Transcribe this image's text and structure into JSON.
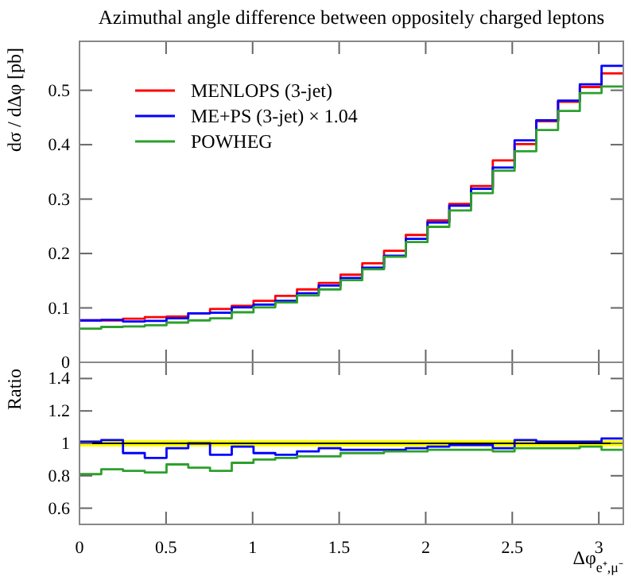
{
  "chart_data": [
    {
      "type": "histogram",
      "title": "Azimuthal angle difference between oppositely charged leptons",
      "ylabel": "dσ / dΔφ [pb]",
      "tick_labels": "y",
      "legend": "top left",
      "bins": [
        0,
        0.1257,
        0.2513,
        0.377,
        0.5027,
        0.6283,
        0.754,
        0.8796,
        1.0053,
        1.131,
        1.2566,
        1.3823,
        1.508,
        1.6336,
        1.7593,
        1.885,
        2.0106,
        2.1363,
        2.2619,
        2.3876,
        2.5133,
        2.6389,
        2.7646,
        2.8903,
        3.0159,
        3.1416
      ],
      "xlim": [
        0,
        3.1416
      ],
      "xticks": [
        {
          "value": 0,
          "label": null
        },
        {
          "value": 0.5,
          "label": null
        },
        {
          "value": 1,
          "label": null
        },
        {
          "value": 1.5,
          "label": null
        },
        {
          "value": 2,
          "label": null
        },
        {
          "value": 2.5,
          "label": null
        },
        {
          "value": 3,
          "label": null
        }
      ],
      "ylim": [
        0,
        0.59
      ],
      "yticks": [
        0,
        0.1,
        0.2,
        0.3,
        0.4,
        0.5
      ],
      "series": [
        {
          "name": "MENLOPS (3-jet)",
          "color": "#ff0000",
          "values": [
            0.077,
            0.077,
            0.08,
            0.083,
            0.084,
            0.09,
            0.098,
            0.104,
            0.113,
            0.122,
            0.134,
            0.146,
            0.161,
            0.182,
            0.205,
            0.234,
            0.261,
            0.291,
            0.324,
            0.371,
            0.401,
            0.443,
            0.479,
            0.506,
            0.531
          ]
        },
        {
          "name": "ME+PS (3-jet) × 1.04",
          "color": "#0000ff",
          "values": [
            0.077,
            0.078,
            0.075,
            0.076,
            0.081,
            0.09,
            0.091,
            0.101,
            0.106,
            0.113,
            0.127,
            0.141,
            0.155,
            0.174,
            0.196,
            0.227,
            0.257,
            0.288,
            0.319,
            0.358,
            0.408,
            0.445,
            0.481,
            0.511,
            0.545
          ]
        },
        {
          "name": "POWHEG",
          "color": "#2ca02c",
          "values": [
            0.062,
            0.065,
            0.066,
            0.068,
            0.073,
            0.077,
            0.081,
            0.092,
            0.101,
            0.11,
            0.123,
            0.134,
            0.151,
            0.171,
            0.194,
            0.221,
            0.249,
            0.279,
            0.311,
            0.352,
            0.388,
            0.427,
            0.462,
            0.495,
            0.507
          ]
        }
      ]
    },
    {
      "type": "histogram",
      "ylabel": "Ratio",
      "xlabel": "Δφ$_{e⁺,μ⁻}$",
      "bins": [
        0,
        0.1257,
        0.2513,
        0.377,
        0.5027,
        0.6283,
        0.754,
        0.8796,
        1.0053,
        1.131,
        1.2566,
        1.3823,
        1.508,
        1.6336,
        1.7593,
        1.885,
        2.0106,
        2.1363,
        2.2619,
        2.3876,
        2.5133,
        2.6389,
        2.7646,
        2.8903,
        3.0159,
        3.1416
      ],
      "xlim": [
        0,
        3.1416
      ],
      "xticks": [
        0,
        0.5,
        1,
        1.5,
        2,
        2.5,
        3
      ],
      "ylim": [
        0.5,
        1.5
      ],
      "yticks": [
        0.6,
        0.8,
        1,
        1.2,
        1.4
      ],
      "bands": [
        {
          "axis": "y",
          "from": 0.98,
          "to": 1.02,
          "color": "#ffff00"
        }
      ],
      "ref_lines": [
        {
          "axis": "y",
          "value": 1,
          "color": "#000000"
        }
      ],
      "series": [
        {
          "color": "#0000ff",
          "values": [
            1.01,
            1.02,
            0.94,
            0.91,
            0.97,
            1.0,
            0.93,
            0.98,
            0.94,
            0.93,
            0.95,
            0.97,
            0.96,
            0.96,
            0.96,
            0.97,
            0.98,
            0.99,
            0.99,
            0.97,
            1.02,
            1.01,
            1.01,
            1.01,
            1.03
          ]
        },
        {
          "color": "#2ca02c",
          "values": [
            0.81,
            0.84,
            0.83,
            0.82,
            0.87,
            0.85,
            0.83,
            0.88,
            0.9,
            0.91,
            0.92,
            0.92,
            0.94,
            0.94,
            0.95,
            0.95,
            0.96,
            0.96,
            0.96,
            0.95,
            0.97,
            0.97,
            0.97,
            0.98,
            0.96
          ]
        }
      ]
    }
  ]
}
